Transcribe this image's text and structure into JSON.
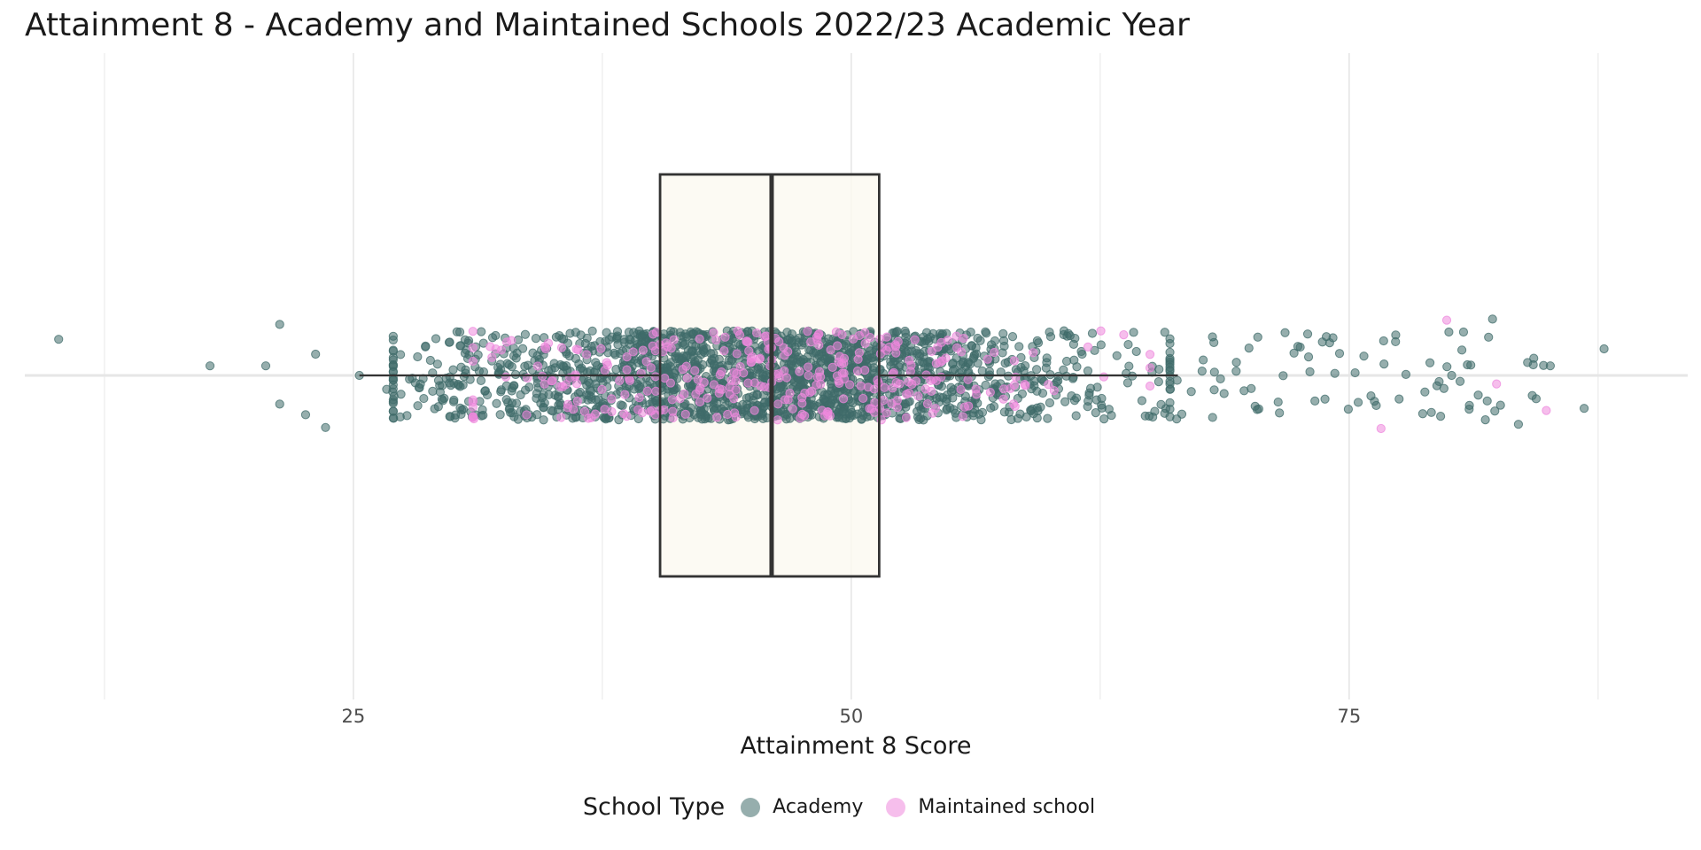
{
  "chart_data": {
    "type": "scatter",
    "subtype": "horizontal boxplot with jittered points",
    "title": "Attainment 8 - Academy and Maintained Schools 2022/23 Academic Year",
    "xlabel": "Attainment 8 Score",
    "ylabel": "",
    "xlim": [
      8.5,
      92
    ],
    "x_ticks": [
      25,
      50,
      75
    ],
    "x_tick_labels": [
      "25",
      "50",
      "75"
    ],
    "grid": true,
    "legend_position": "bottom",
    "box": {
      "whisker_low": 25.3,
      "q1": 40.4,
      "median": 46.0,
      "q3": 51.4,
      "whisker_high": 66.4,
      "fill": "#fbf9f0",
      "stroke": "#333333"
    },
    "legend": {
      "title": "School Type",
      "items": [
        {
          "label": "Academy",
          "color": "#3f6b6a"
        },
        {
          "label": "Maintained school",
          "color": "#ee88dd"
        }
      ]
    },
    "series": [
      {
        "name": "Academy",
        "color": "#3f6b6a",
        "outlier_points": [
          [
            10.2,
            0.34
          ],
          [
            17.8,
            0.09
          ],
          [
            20.6,
            0.09
          ],
          [
            21.3,
            0.48
          ],
          [
            23.1,
            0.2
          ],
          [
            21.3,
            -0.27
          ],
          [
            22.6,
            -0.37
          ],
          [
            23.6,
            -0.49
          ],
          [
            25.3,
            0.0
          ],
          [
            85.1,
            0.09
          ],
          [
            87.8,
            0.25
          ],
          [
            86.8,
            -0.31
          ],
          [
            82.2,
            0.53
          ],
          [
            83.5,
            -0.46
          ],
          [
            82.0,
            0.36
          ],
          [
            82.6,
            -0.28
          ]
        ]
      },
      {
        "name": "Maintained school",
        "color": "#ee88dd",
        "outlier_points": [
          [
            79.9,
            0.52
          ],
          [
            76.6,
            -0.5
          ],
          [
            82.4,
            -0.08
          ],
          [
            84.9,
            -0.33
          ]
        ]
      }
    ]
  }
}
